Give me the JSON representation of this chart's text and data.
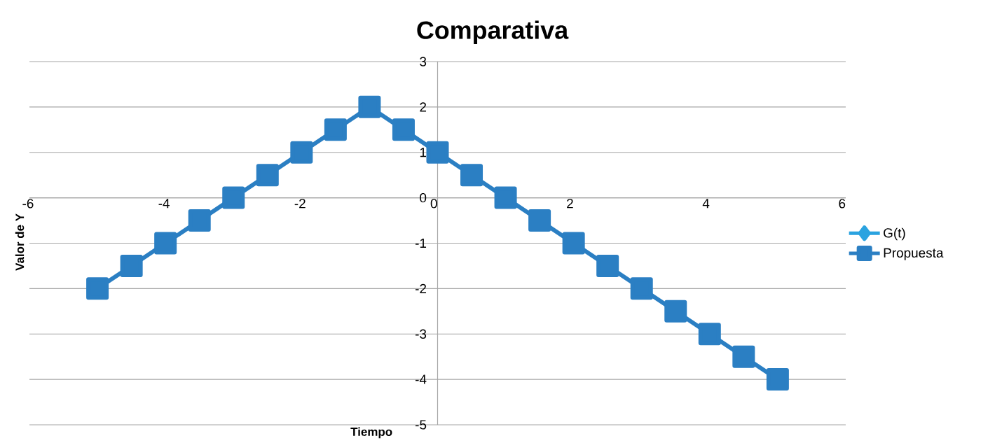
{
  "chart_data": {
    "type": "line",
    "title": "Comparativa",
    "xlabel": "Tiempo",
    "ylabel": "Valor de Y",
    "x": [
      -5,
      -4.5,
      -4,
      -3.5,
      -3,
      -2.5,
      -2,
      -1.5,
      -1,
      -0.5,
      0,
      0.5,
      1,
      1.5,
      2,
      2.5,
      3,
      3.5,
      4,
      4.5,
      5
    ],
    "series": [
      {
        "name": "G(t)",
        "color": "#2aa3e0",
        "marker": "diamond",
        "values": [
          null,
          null,
          null,
          null,
          null,
          null,
          null,
          null,
          null,
          null,
          null,
          null,
          null,
          null,
          null,
          null,
          null,
          null,
          null,
          null,
          null
        ]
      },
      {
        "name": "Propuesta",
        "color": "#2b7fc3",
        "marker": "square",
        "values": [
          -2,
          -1.5,
          -1,
          -0.5,
          0,
          0.5,
          1,
          1.5,
          2,
          1.5,
          1,
          0.5,
          0,
          -0.5,
          -1,
          -1.5,
          -2,
          -2.5,
          -3,
          -3.5,
          -4
        ]
      }
    ],
    "xlim": [
      -6,
      6
    ],
    "ylim": [
      -5,
      3
    ],
    "xticks": [
      -6,
      -4,
      -2,
      0,
      2,
      4,
      6
    ],
    "yticks": [
      -5,
      -4,
      -3,
      -2,
      -1,
      0,
      1,
      2,
      3
    ],
    "grid": "y",
    "legend": "right",
    "line_style": "solid"
  }
}
